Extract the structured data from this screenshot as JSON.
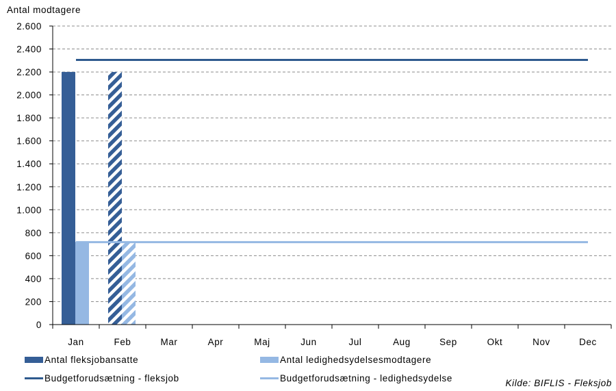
{
  "chart_data": {
    "type": "bar",
    "y_title": "Antal modtagere",
    "categories": [
      "Jan",
      "Feb",
      "Mar",
      "Apr",
      "Maj",
      "Jun",
      "Jul",
      "Aug",
      "Sep",
      "Okt",
      "Nov",
      "Dec"
    ],
    "ylim": [
      0,
      2600
    ],
    "yticks": [
      0,
      200,
      400,
      600,
      800,
      1000,
      1200,
      1400,
      1600,
      1800,
      2000,
      2200,
      2400,
      2600
    ],
    "ytick_labels": [
      "0",
      "200",
      "400",
      "600",
      "800",
      "1.000",
      "1.200",
      "1.400",
      "1.600",
      "1.800",
      "2.000",
      "2.200",
      "2.400",
      "2.600"
    ],
    "grid": true,
    "series": [
      {
        "name": "Antal fleksjobansatte",
        "kind": "bar",
        "color": "#355E96",
        "values": [
          2200,
          2200,
          null,
          null,
          null,
          null,
          null,
          null,
          null,
          null,
          null,
          null
        ],
        "hatched": [
          false,
          true,
          false,
          false,
          false,
          false,
          false,
          false,
          false,
          false,
          false,
          false
        ]
      },
      {
        "name": "Antal ledighedsydelsesmodtagere",
        "kind": "bar",
        "color": "#95B8E3",
        "values": [
          720,
          720,
          null,
          null,
          null,
          null,
          null,
          null,
          null,
          null,
          null,
          null
        ],
        "hatched": [
          false,
          true,
          false,
          false,
          false,
          false,
          false,
          false,
          false,
          false,
          false,
          false
        ]
      },
      {
        "name": "Budgetforudsætning - fleksjob",
        "kind": "line",
        "color": "#2E5A8E",
        "value": 2305
      },
      {
        "name": "Budgetforudsætning - ledighedsydelse",
        "kind": "line",
        "color": "#95B8E3",
        "value": 718
      }
    ],
    "legend_placement": "bottom",
    "source": "Kilde: BIFLIS - Fleksjob"
  }
}
